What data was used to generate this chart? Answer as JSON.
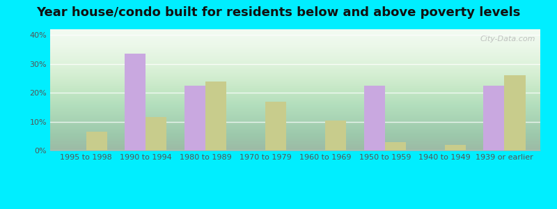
{
  "title": "Year house/condo built for residents below and above poverty levels",
  "categories": [
    "1995 to 1998",
    "1990 to 1994",
    "1980 to 1989",
    "1970 to 1979",
    "1960 to 1969",
    "1950 to 1959",
    "1940 to 1949",
    "1939 or earlier"
  ],
  "below_poverty": [
    0,
    33.5,
    22.5,
    0,
    0,
    22.5,
    0,
    22.5
  ],
  "above_poverty": [
    6.5,
    11.5,
    24.0,
    17.0,
    10.5,
    3.0,
    2.0,
    26.0
  ],
  "below_color": "#c9a8e0",
  "above_color": "#c8cc8c",
  "outer_background": "#00eeff",
  "ylim": [
    0,
    42
  ],
  "yticks": [
    0,
    10,
    20,
    30,
    40
  ],
  "ytick_labels": [
    "0%",
    "10%",
    "20%",
    "30%",
    "40%"
  ],
  "bar_width": 0.35,
  "title_fontsize": 13,
  "tick_fontsize": 8,
  "legend_fontsize": 9,
  "watermark": "City-Data.com"
}
